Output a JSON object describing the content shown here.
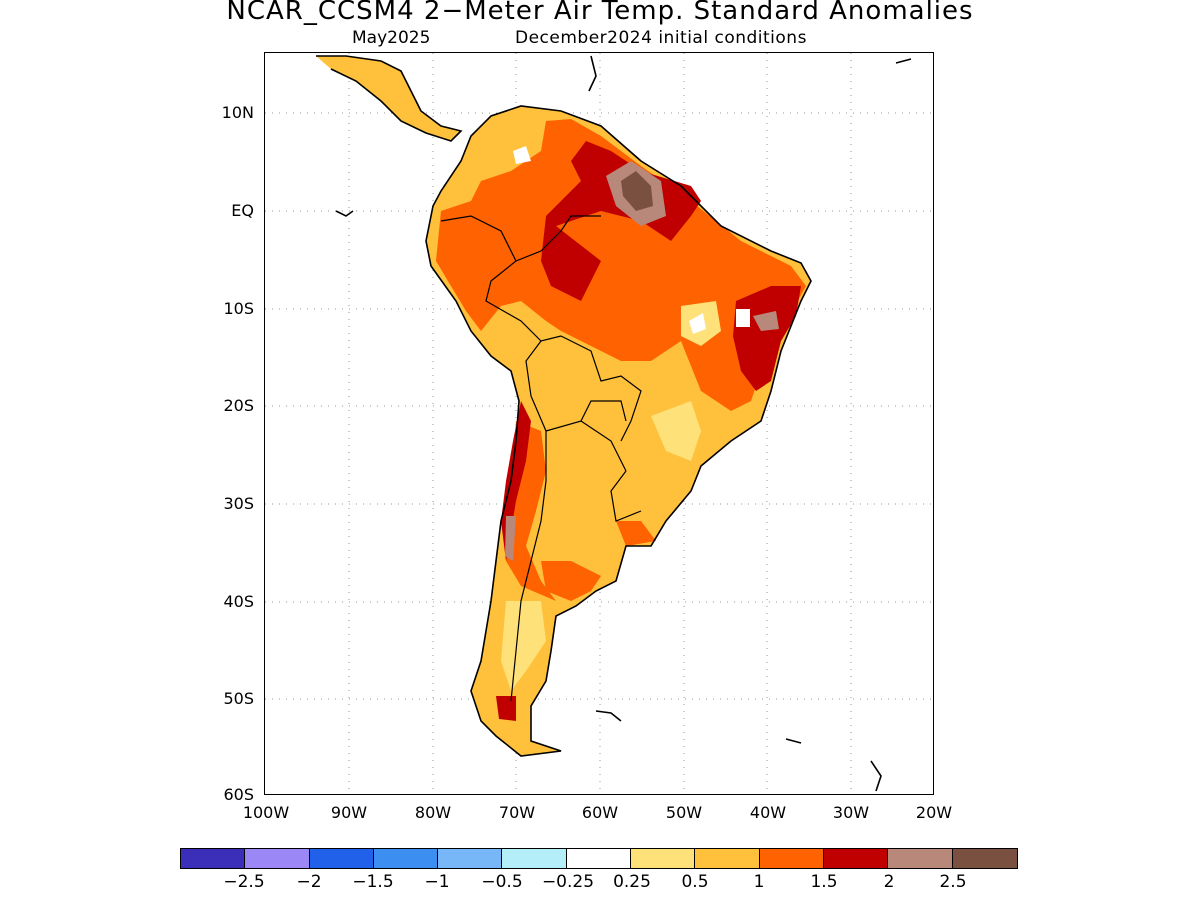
{
  "title": "NCAR_CCSM4 2−Meter Air Temp. Standard Anomalies",
  "subtitle": {
    "month": "May2025",
    "init": "December2024 initial conditions"
  },
  "map": {
    "lat_labels": [
      "10N",
      "EQ",
      "10S",
      "20S",
      "30S",
      "40S",
      "50S",
      "60S"
    ],
    "lon_labels": [
      "100W",
      "90W",
      "80W",
      "70W",
      "60W",
      "50W",
      "40W",
      "30W",
      "20W"
    ],
    "lat_range": [
      -60,
      15.5
    ],
    "lon_range": [
      -100,
      -20
    ],
    "gridlines": true
  },
  "legend": {
    "colors": [
      "#3b2eb8",
      "#9b87f5",
      "#2160e8",
      "#3c8ff0",
      "#77b6f7",
      "#b4eef9",
      "#ffffff",
      "#ffe17a",
      "#ffc03c",
      "#ff6200",
      "#c00000",
      "#b8887a",
      "#7a5040"
    ],
    "labels": [
      "−2.5",
      "−2",
      "−1.5",
      "−1",
      "−0.5",
      "−0.25",
      "0.25",
      "0.5",
      "1",
      "1.5",
      "2",
      "2.5"
    ]
  }
}
